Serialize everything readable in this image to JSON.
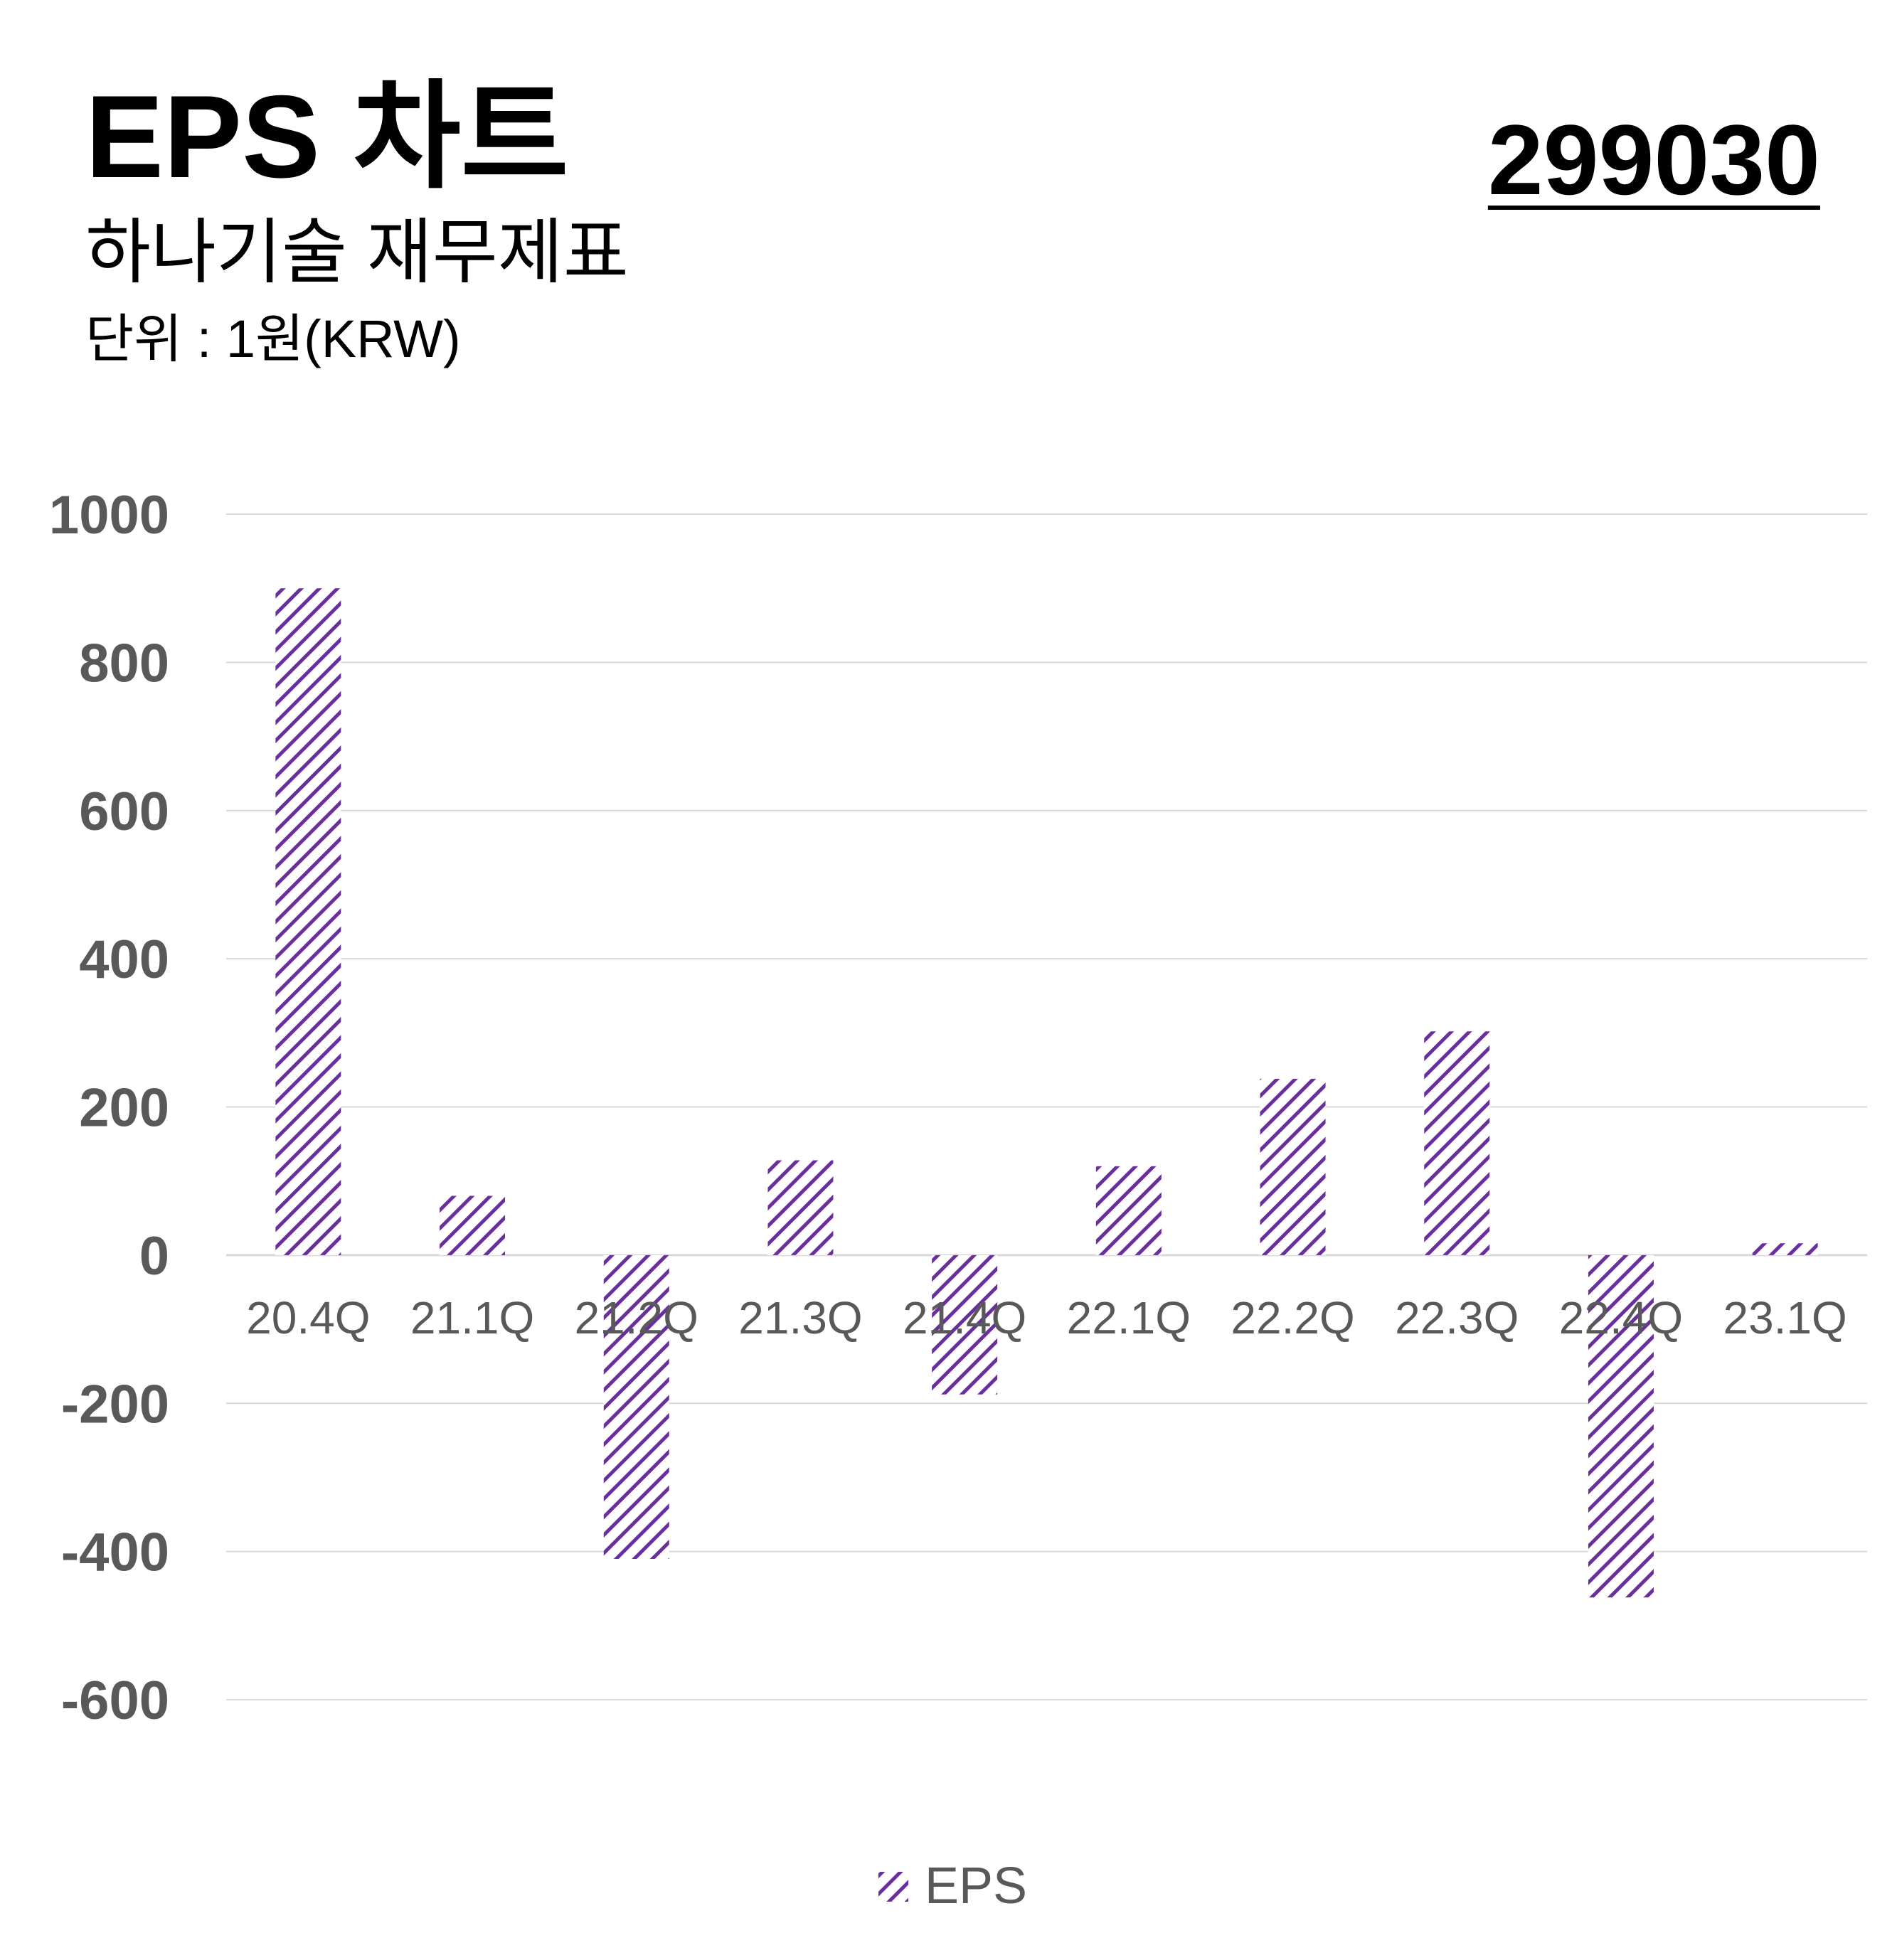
{
  "header": {
    "title": "EPS 차트",
    "subtitle": "하나기술 재무제표",
    "unit": "단위 : 1원(KRW)",
    "code": "299030"
  },
  "colors": {
    "bar": "#6a2f9e",
    "grid": "#d9d9d9",
    "axis_text": "#595959",
    "tick_text": "#595959"
  },
  "chart_data": {
    "type": "bar",
    "categories": [
      "20.4Q",
      "21.1Q",
      "21.2Q",
      "21.3Q",
      "21.4Q",
      "22.1Q",
      "22.2Q",
      "22.3Q",
      "22.4Q",
      "23.1Q"
    ],
    "series": [
      {
        "name": "EPS",
        "values": [
          900,
          80,
          -410,
          128,
          -188,
          120,
          238,
          302,
          -462,
          16
        ],
        "pattern": "diagonal-hatch"
      }
    ],
    "yticks": [
      "1000",
      "800",
      "600",
      "400",
      "200",
      "0",
      "-200",
      "-400",
      "-600"
    ],
    "ylim": [
      -600,
      1000
    ],
    "grid": true,
    "legend": {
      "position": "bottom-center",
      "label": "EPS"
    }
  }
}
